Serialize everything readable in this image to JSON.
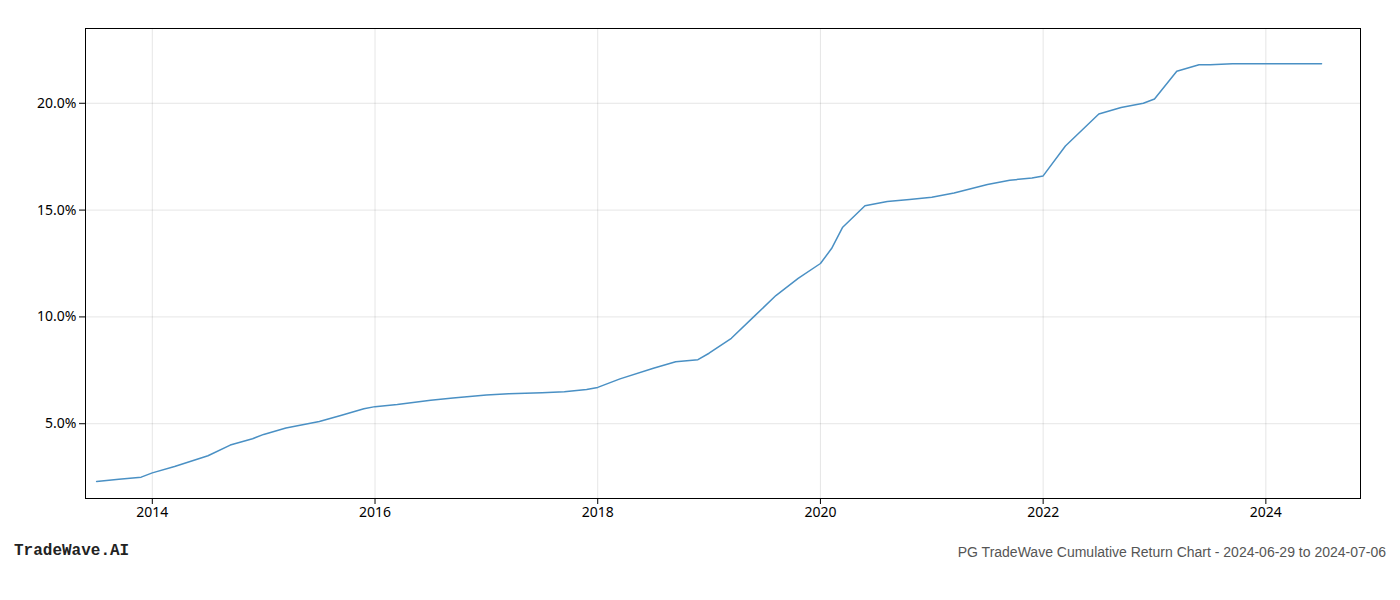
{
  "chart_data": {
    "type": "line",
    "title": "PG TradeWave Cumulative Return Chart - 2024-06-29 to 2024-07-06",
    "annotations": [
      "TradeWave.AI"
    ],
    "x": [
      2013.5,
      2013.7,
      2013.9,
      2014.0,
      2014.2,
      2014.5,
      2014.7,
      2014.9,
      2015.0,
      2015.2,
      2015.5,
      2015.7,
      2015.9,
      2016.0,
      2016.2,
      2016.5,
      2016.7,
      2016.9,
      2017.0,
      2017.2,
      2017.5,
      2017.7,
      2017.9,
      2018.0,
      2018.2,
      2018.5,
      2018.7,
      2018.9,
      2019.0,
      2019.2,
      2019.4,
      2019.6,
      2019.8,
      2020.0,
      2020.1,
      2020.2,
      2020.4,
      2020.6,
      2020.8,
      2021.0,
      2021.2,
      2021.5,
      2021.7,
      2021.9,
      2022.0,
      2022.2,
      2022.5,
      2022.7,
      2022.9,
      2023.0,
      2023.2,
      2023.4,
      2023.5,
      2023.7,
      2023.9,
      2024.0,
      2024.3,
      2024.5
    ],
    "values": [
      2.3,
      2.4,
      2.5,
      2.7,
      3.0,
      3.5,
      4.0,
      4.3,
      4.5,
      4.8,
      5.1,
      5.4,
      5.7,
      5.8,
      5.9,
      6.1,
      6.2,
      6.3,
      6.35,
      6.4,
      6.45,
      6.5,
      6.6,
      6.7,
      7.1,
      7.6,
      7.9,
      8.0,
      8.3,
      9.0,
      10.0,
      11.0,
      11.8,
      12.5,
      13.2,
      14.2,
      15.2,
      15.4,
      15.5,
      15.6,
      15.8,
      16.2,
      16.4,
      16.5,
      16.6,
      18.0,
      19.5,
      19.8,
      20.0,
      20.2,
      21.5,
      21.8,
      21.8,
      21.85,
      21.85,
      21.85,
      21.85,
      21.85
    ],
    "color": "#4a90c4",
    "xlim": [
      2013.4,
      2024.85
    ],
    "xticks": [
      2014,
      2016,
      2018,
      2020,
      2022,
      2024
    ],
    "ylim": [
      1.5,
      23.5
    ],
    "yticks": [
      {
        "value": 5.0,
        "label": "5.0%"
      },
      {
        "value": 10.0,
        "label": "10.0%"
      },
      {
        "value": 15.0,
        "label": "15.0%"
      },
      {
        "value": 20.0,
        "label": "20.0%"
      }
    ],
    "grid": true
  }
}
